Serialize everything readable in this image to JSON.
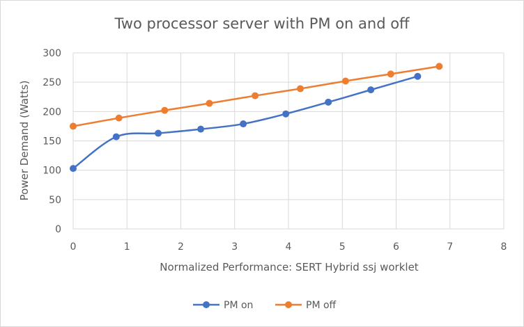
{
  "chart_data": {
    "type": "scatter",
    "title": "Two processor server with PM on and off",
    "xlabel": "Normalized Performance: SERT Hybrid ssj worklet",
    "ylabel": "Power Demand (Watts)",
    "xlim": [
      0,
      8
    ],
    "ylim": [
      0,
      300
    ],
    "xticks": [
      "0",
      "1",
      "2",
      "3",
      "4",
      "5",
      "6",
      "7",
      "8"
    ],
    "yticks": [
      "0",
      "50",
      "100",
      "150",
      "200",
      "250",
      "300"
    ],
    "grid": true,
    "legend_position": "bottom",
    "series": [
      {
        "name": "PM on",
        "color": "#4472c4",
        "x": [
          0,
          0.8,
          1.58,
          2.37,
          3.16,
          3.95,
          4.74,
          5.53,
          6.4
        ],
        "y": [
          103,
          157,
          163,
          170,
          179,
          196,
          216,
          237,
          260
        ]
      },
      {
        "name": "PM off",
        "color": "#ed7d31",
        "x": [
          0,
          0.85,
          1.7,
          2.53,
          3.38,
          4.22,
          5.06,
          5.9,
          6.8
        ],
        "y": [
          175,
          189,
          202,
          214,
          227,
          239,
          252,
          264,
          277
        ]
      }
    ]
  }
}
